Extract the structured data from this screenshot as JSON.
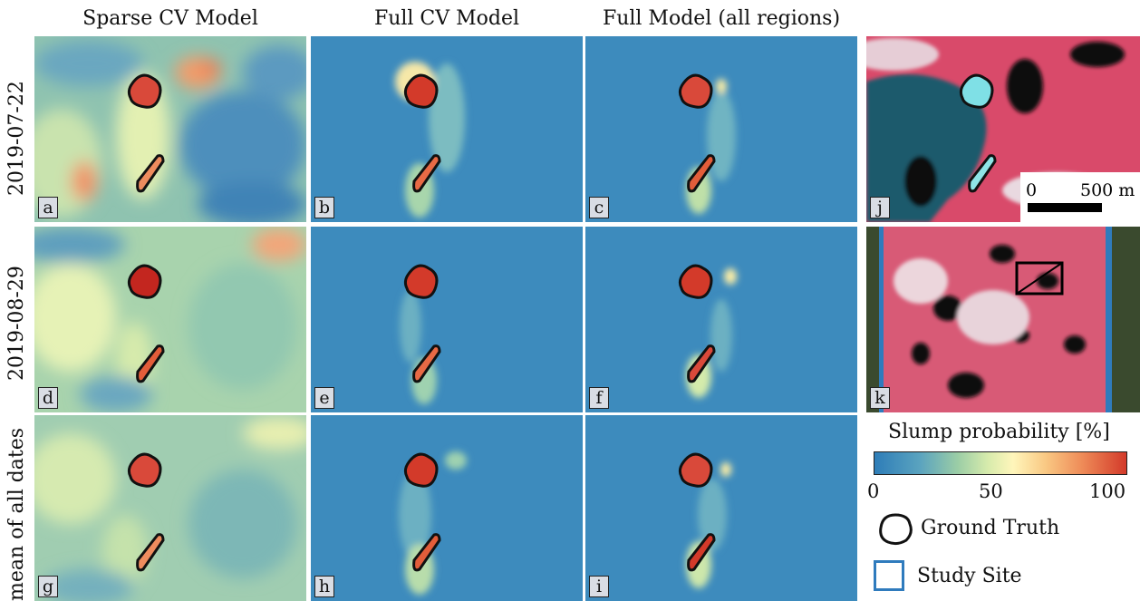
{
  "columns": [
    "Sparse CV Model",
    "Full CV Model",
    "Full Model (all regions)"
  ],
  "rows": [
    "2019-07-22",
    "2019-08-29",
    "mean of all dates"
  ],
  "panel_labels": [
    "a",
    "b",
    "c",
    "d",
    "e",
    "f",
    "g",
    "h",
    "i",
    "j",
    "k"
  ],
  "scale_bar": {
    "start": "0",
    "end": "500 m"
  },
  "legend": {
    "title": "Slump probability [%]",
    "ticks": [
      "0",
      "50",
      "100"
    ],
    "ground_truth": "Ground Truth",
    "study_site": "Study Site"
  },
  "colors": {
    "low": "#2e7db8",
    "mid": "#fff6bb",
    "high": "#d33a2a",
    "study_site": "#2f7bbd",
    "outline": "#111111"
  }
}
